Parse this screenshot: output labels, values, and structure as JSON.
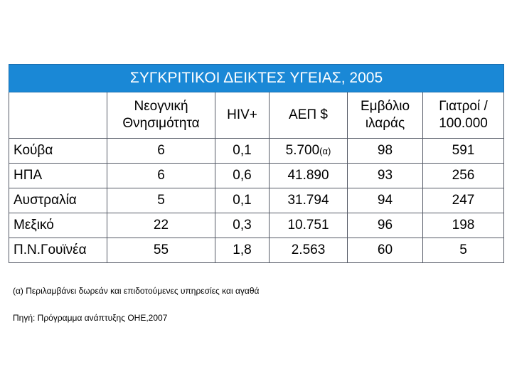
{
  "table": {
    "title": "ΣΥΓΚΡΙΤΙΚΟΙ ΔΕΙΚΤΕΣ ΥΓΕΙΑΣ, 2005",
    "headers": [
      "",
      "Νεογνική Θνησιμότητα",
      "HIV+",
      "ΑΕΠ $",
      "Εμβόλιο ιλαράς",
      "Γιατροί / 100.000"
    ],
    "rows": [
      {
        "country": "Κούβα",
        "neonatal": "6",
        "hiv": "0,1",
        "gdp": "5.700",
        "gdp_note": "(α)",
        "measles": "98",
        "doctors": "591"
      },
      {
        "country": "ΗΠΑ",
        "neonatal": "6",
        "hiv": "0,6",
        "gdp": "41.890",
        "gdp_note": "",
        "measles": "93",
        "doctors": "256"
      },
      {
        "country": "Αυστραλία",
        "neonatal": "5",
        "hiv": "0,1",
        "gdp": "31.794",
        "gdp_note": "",
        "measles": "94",
        "doctors": "247"
      },
      {
        "country": "Μεξικό",
        "neonatal": "22",
        "hiv": "0,3",
        "gdp": "10.751",
        "gdp_note": "",
        "measles": "96",
        "doctors": "198"
      },
      {
        "country": "Π.Ν.Γουϊνέα",
        "neonatal": "55",
        "hiv": "1,8",
        "gdp": "2.563",
        "gdp_note": "",
        "measles": "60",
        "doctors": "5"
      }
    ]
  },
  "footnote": "(α) Περιλαμβάνει δωρεάν και επιδοτούμενες υπηρεσίες και αγαθά",
  "source": "Πηγή: Πρόγραμμα ανάπτυξης ΟΗΕ,2007",
  "colors": {
    "title_bg": "#1a88d6"
  }
}
